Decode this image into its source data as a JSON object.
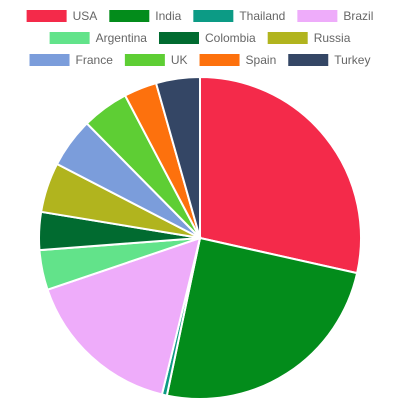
{
  "chart_data": {
    "type": "pie",
    "title": "",
    "legend_position": "top",
    "categories": [
      "USA",
      "India",
      "Thailand",
      "Brazil",
      "Argentina",
      "Colombia",
      "Russia",
      "France",
      "UK",
      "Spain",
      "Turkey"
    ],
    "values": [
      28.5,
      24.8,
      0.5,
      16.0,
      4.0,
      3.8,
      5.0,
      5.0,
      4.7,
      3.3,
      4.4
    ],
    "colors": [
      "#f42a4a",
      "#038c1b",
      "#0c9b85",
      "#eeacfa",
      "#62e38a",
      "#016b30",
      "#b1b41e",
      "#7b9ddb",
      "#5ece34",
      "#fd710d",
      "#344665"
    ]
  }
}
